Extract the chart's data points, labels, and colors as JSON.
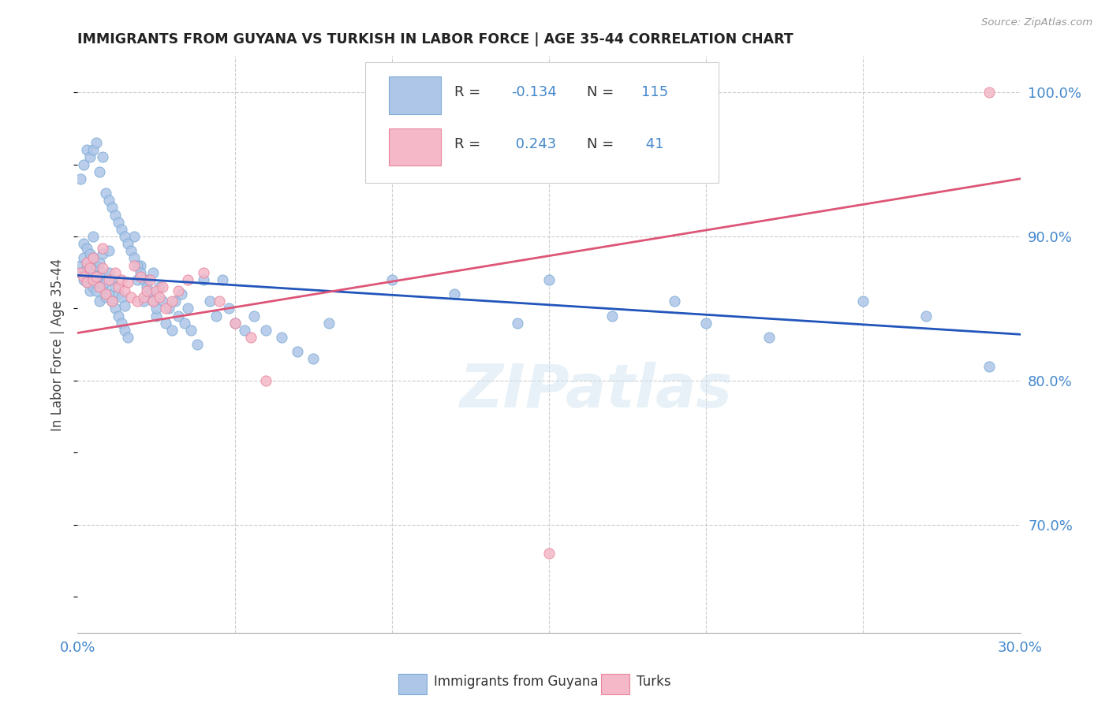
{
  "title": "IMMIGRANTS FROM GUYANA VS TURKISH IN LABOR FORCE | AGE 35-44 CORRELATION CHART",
  "source": "Source: ZipAtlas.com",
  "ylabel": "In Labor Force | Age 35-44",
  "xlim": [
    0.0,
    0.3
  ],
  "ylim": [
    0.625,
    1.025
  ],
  "x_ticks": [
    0.0,
    0.05,
    0.1,
    0.15,
    0.2,
    0.25,
    0.3
  ],
  "y_ticks_right": [
    0.7,
    0.8,
    0.9,
    1.0
  ],
  "y_tick_labels_right": [
    "70.0%",
    "80.0%",
    "90.0%",
    "100.0%"
  ],
  "blue_color": "#aec6e8",
  "blue_edge": "#7aaad4",
  "pink_color": "#f4b8c8",
  "pink_edge": "#e8849c",
  "blue_line_color": "#2255bb",
  "pink_line_color": "#dd5577",
  "R_blue": -0.134,
  "N_blue": 115,
  "R_pink": 0.243,
  "N_pink": 41,
  "legend_label_blue": "Immigrants from Guyana",
  "legend_label_pink": "Turks",
  "watermark": "ZIPatlas",
  "blue_line_x0": 0.0,
  "blue_line_y0": 0.873,
  "blue_line_x1": 0.3,
  "blue_line_y1": 0.832,
  "pink_line_x0": 0.0,
  "pink_line_y0": 0.833,
  "pink_line_x1": 0.3,
  "pink_line_y1": 0.94
}
